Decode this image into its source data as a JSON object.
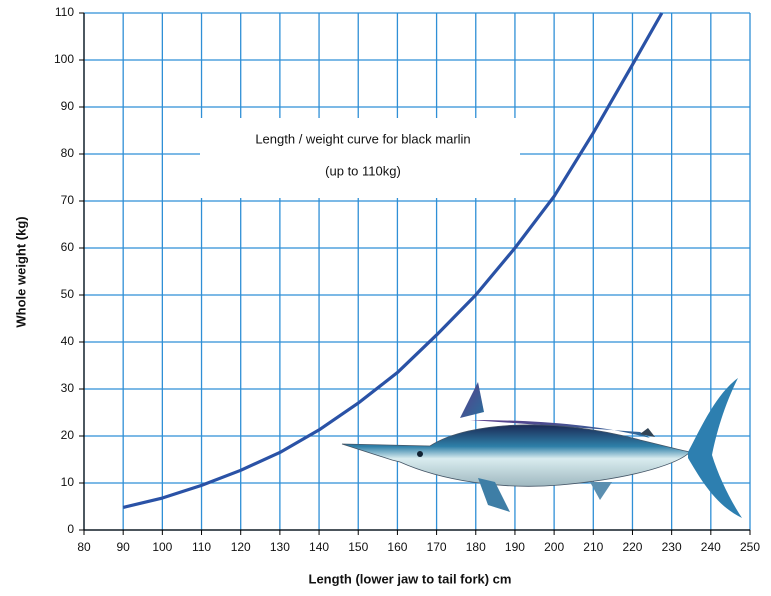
{
  "chart_data": {
    "type": "line",
    "annotations": [
      "Length / weight curve for black marlin",
      "(up to 110kg)"
    ],
    "x_label": "Length (lower jaw to tail fork) cm",
    "y_label": "Whole weight (kg)",
    "x": [
      90,
      100,
      110,
      120,
      130,
      140,
      150,
      160,
      170,
      180,
      190,
      200,
      210,
      220,
      227.5
    ],
    "values": [
      4.8,
      6.8,
      9.5,
      12.7,
      16.5,
      21.3,
      27,
      33.5,
      41.5,
      50,
      60,
      71,
      84.5,
      99,
      110
    ],
    "color": "#2a52a6",
    "xlim": [
      80,
      250
    ],
    "xticks": [
      80,
      90,
      100,
      110,
      120,
      130,
      140,
      150,
      160,
      170,
      180,
      190,
      200,
      210,
      220,
      230,
      240,
      250
    ],
    "ylim": [
      0,
      110
    ],
    "yticks": [
      0,
      10,
      20,
      30,
      40,
      50,
      60,
      70,
      80,
      90,
      100,
      110
    ],
    "grid": true
  }
}
